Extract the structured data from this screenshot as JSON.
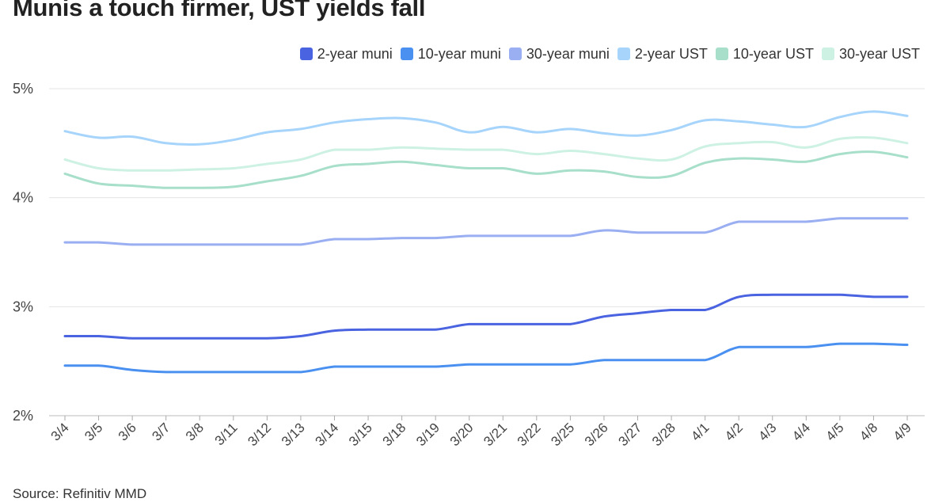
{
  "title": "Munis a touch firmer, UST yields fall",
  "source": "Source: Refinitiv MMD",
  "chart_data": {
    "type": "line",
    "categories": [
      "3/4",
      "3/5",
      "3/6",
      "3/7",
      "3/8",
      "3/11",
      "3/12",
      "3/13",
      "3/14",
      "3/15",
      "3/18",
      "3/19",
      "3/20",
      "3/21",
      "3/22",
      "3/25",
      "3/26",
      "3/27",
      "3/28",
      "4/1",
      "4/2",
      "4/3",
      "4/4",
      "4/5",
      "4/8",
      "4/9"
    ],
    "y_ticks": [
      "2%",
      "3%",
      "4%",
      "5%"
    ],
    "ylim": [
      2,
      5
    ],
    "grid": "horizontal",
    "legend_position": "top-right",
    "series": [
      {
        "name": "2-year muni",
        "color": "#4a63e0",
        "values": [
          2.73,
          2.73,
          2.71,
          2.71,
          2.71,
          2.71,
          2.71,
          2.73,
          2.78,
          2.79,
          2.79,
          2.79,
          2.84,
          2.84,
          2.84,
          2.84,
          2.91,
          2.94,
          2.97,
          2.97,
          3.09,
          3.11,
          3.11,
          3.11,
          3.09,
          3.09
        ]
      },
      {
        "name": "10-year muni",
        "color": "#4a90f0",
        "values": [
          2.46,
          2.46,
          2.42,
          2.4,
          2.4,
          2.4,
          2.4,
          2.4,
          2.45,
          2.45,
          2.45,
          2.45,
          2.47,
          2.47,
          2.47,
          2.47,
          2.51,
          2.51,
          2.51,
          2.51,
          2.63,
          2.63,
          2.63,
          2.66,
          2.66,
          2.65
        ]
      },
      {
        "name": "30-year muni",
        "color": "#9aaef2",
        "values": [
          3.59,
          3.59,
          3.57,
          3.57,
          3.57,
          3.57,
          3.57,
          3.57,
          3.62,
          3.62,
          3.63,
          3.63,
          3.65,
          3.65,
          3.65,
          3.65,
          3.7,
          3.68,
          3.68,
          3.68,
          3.78,
          3.78,
          3.78,
          3.81,
          3.81,
          3.81
        ]
      },
      {
        "name": "2-year UST",
        "color": "#a6d4fb",
        "values": [
          4.61,
          4.55,
          4.56,
          4.5,
          4.49,
          4.53,
          4.6,
          4.63,
          4.69,
          4.72,
          4.73,
          4.69,
          4.6,
          4.65,
          4.6,
          4.63,
          4.59,
          4.57,
          4.62,
          4.71,
          4.7,
          4.67,
          4.65,
          4.74,
          4.79,
          4.75
        ]
      },
      {
        "name": "10-year UST",
        "color": "#a7dfca",
        "values": [
          4.22,
          4.13,
          4.11,
          4.09,
          4.09,
          4.1,
          4.15,
          4.2,
          4.29,
          4.31,
          4.33,
          4.3,
          4.27,
          4.27,
          4.22,
          4.25,
          4.24,
          4.19,
          4.2,
          4.32,
          4.36,
          4.35,
          4.33,
          4.4,
          4.42,
          4.37
        ]
      },
      {
        "name": "30-year UST",
        "color": "#cdf1e3",
        "values": [
          4.35,
          4.27,
          4.25,
          4.25,
          4.26,
          4.27,
          4.31,
          4.35,
          4.44,
          4.44,
          4.46,
          4.45,
          4.44,
          4.44,
          4.4,
          4.43,
          4.4,
          4.36,
          4.35,
          4.47,
          4.5,
          4.51,
          4.46,
          4.54,
          4.55,
          4.5
        ]
      }
    ]
  }
}
